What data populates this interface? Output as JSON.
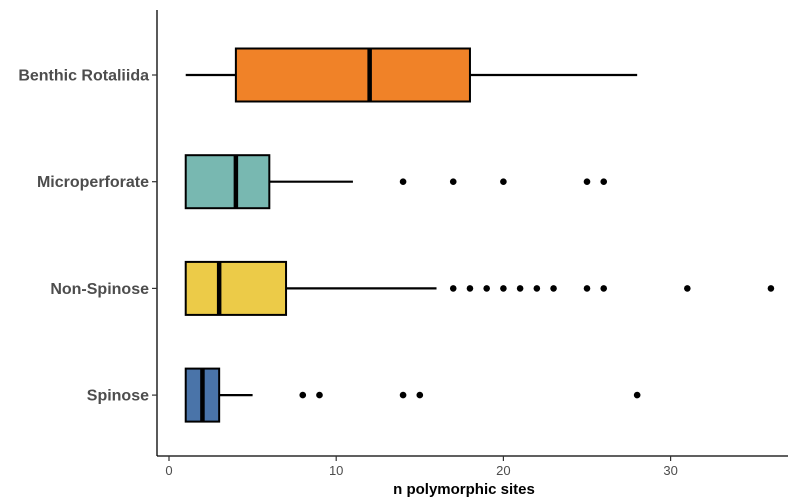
{
  "chart_data": {
    "type": "boxplot",
    "orientation": "horizontal",
    "xlabel": "n polymorphic sites",
    "ylabel": "",
    "xlim": [
      0,
      37
    ],
    "xticks": [
      0,
      10,
      20,
      30
    ],
    "grid": false,
    "legend": "none",
    "categories": [
      "Benthic Rotaliida",
      "Microperforate",
      "Non-Spinose",
      "Spinose"
    ],
    "series": [
      {
        "category": "Benthic Rotaliida",
        "color": "#F08228",
        "whisker_low": 1,
        "q1": 4,
        "median": 12,
        "q3": 18,
        "whisker_high": 28,
        "outliers": []
      },
      {
        "category": "Microperforate",
        "color": "#78B8B1",
        "whisker_low": 1,
        "q1": 1,
        "median": 4,
        "q3": 6,
        "whisker_high": 11,
        "outliers": [
          14,
          17,
          20,
          25,
          26
        ]
      },
      {
        "category": "Non-Spinose",
        "color": "#ECCB48",
        "whisker_low": 1,
        "q1": 1,
        "median": 3,
        "q3": 7,
        "whisker_high": 16,
        "outliers": [
          17,
          18,
          19,
          20,
          21,
          22,
          23,
          25,
          26,
          31,
          36
        ]
      },
      {
        "category": "Spinose",
        "color": "#4A74A9",
        "whisker_low": 1,
        "q1": 1,
        "median": 2,
        "q3": 3,
        "whisker_high": 5,
        "outliers": [
          8,
          9,
          14,
          15,
          28
        ]
      }
    ]
  }
}
